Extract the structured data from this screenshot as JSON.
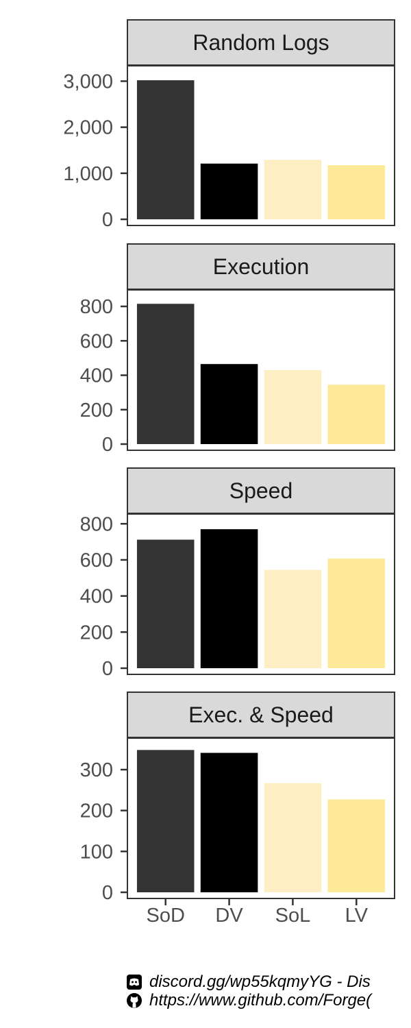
{
  "chart_data": {
    "type": "bar",
    "categories": [
      "SoD",
      "DV",
      "SoL",
      "LV"
    ],
    "colors": [
      "#333333",
      "#000000",
      "#fdefc3",
      "#fee999"
    ],
    "facets": [
      {
        "title": "Random Logs",
        "values": [
          3020,
          1210,
          1290,
          1175
        ],
        "ylim": [
          0,
          3200
        ],
        "ticks": [
          0,
          1000,
          2000,
          3000
        ],
        "tick_labels": [
          "0",
          "1,000",
          "2,000",
          "3,000"
        ]
      },
      {
        "title": "Execution",
        "values": [
          815,
          465,
          430,
          345
        ],
        "ylim": [
          0,
          860
        ],
        "ticks": [
          0,
          200,
          400,
          600,
          800
        ],
        "tick_labels": [
          "0",
          "200",
          "400",
          "600",
          "800"
        ]
      },
      {
        "title": "Speed",
        "values": [
          712,
          770,
          545,
          607
        ],
        "ylim": [
          0,
          820
        ],
        "ticks": [
          0,
          200,
          400,
          600,
          800
        ],
        "tick_labels": [
          "0",
          "200",
          "400",
          "600",
          "800"
        ]
      },
      {
        "title": "Exec. & Speed",
        "values": [
          348,
          341,
          267,
          227
        ],
        "ylim": [
          0,
          362
        ],
        "ticks": [
          0,
          100,
          200,
          300
        ],
        "tick_labels": [
          "0",
          "100",
          "200",
          "300"
        ]
      }
    ],
    "grid": false,
    "legend": "none"
  },
  "credits": {
    "discord_icon": "discord-icon",
    "discord_text": "discord.gg/wp55kqmyYG - Dis",
    "github_icon": "github-icon",
    "github_text": "https://www.github.com/Forge("
  }
}
